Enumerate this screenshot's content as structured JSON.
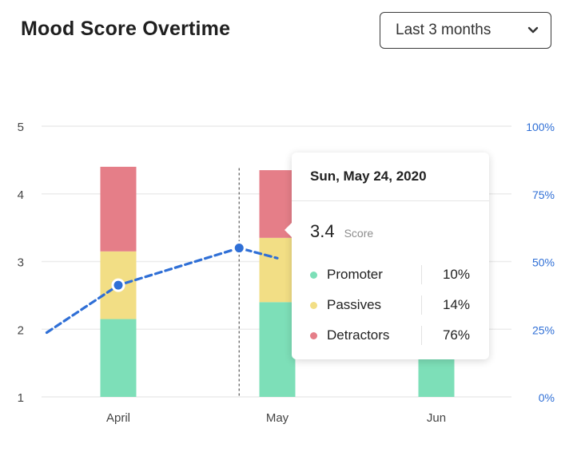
{
  "header": {
    "title": "Mood Score Overtime",
    "range_select": {
      "selected": "Last 3 months",
      "icon": "chevron-down-icon"
    }
  },
  "colors": {
    "promoter": "#7ddfb8",
    "passives": "#f2de85",
    "detractors": "#e57e88",
    "score_line": "#2f6fd6",
    "right_axis_text": "#2f6fd6",
    "grid": "#ececec"
  },
  "tooltip": {
    "date": "Sun, May 24, 2020",
    "score": "3.4",
    "score_label": "Score",
    "rows": [
      {
        "name": "Promoter",
        "percent": "10%"
      },
      {
        "name": "Passives",
        "percent": "14%"
      },
      {
        "name": "Detractors",
        "percent": "76%"
      }
    ]
  },
  "chart_data": {
    "type": "bar",
    "title": "Mood Score Overtime",
    "categories": [
      "April",
      "May",
      "Jun"
    ],
    "y_left": {
      "ticks": [
        "1",
        "2",
        "3",
        "4",
        "5"
      ],
      "range": [
        1,
        5
      ]
    },
    "y_right": {
      "ticks": [
        "0%",
        "25%",
        "50%",
        "75%",
        "100%"
      ],
      "range": [
        0,
        100
      ]
    },
    "stacked_series": [
      {
        "name": "Promoter",
        "values": [
          2.15,
          2.4,
          2.15
        ]
      },
      {
        "name": "Passives",
        "values": [
          3.15,
          3.35,
          null
        ]
      },
      {
        "name": "Detractors",
        "values": [
          4.4,
          4.35,
          null
        ]
      }
    ],
    "score_line": {
      "points": [
        {
          "x": 3.55,
          "y": 1.95
        },
        {
          "x": 4.0,
          "y": 2.65
        },
        {
          "x": 4.76,
          "y": 3.2
        },
        {
          "x": 5.0,
          "y": 3.05
        }
      ],
      "markers": [
        {
          "x": 4.0,
          "y": 2.65
        },
        {
          "x": 4.76,
          "y": 3.2
        }
      ]
    },
    "hover_guide_x": 4.76,
    "grid": true
  }
}
